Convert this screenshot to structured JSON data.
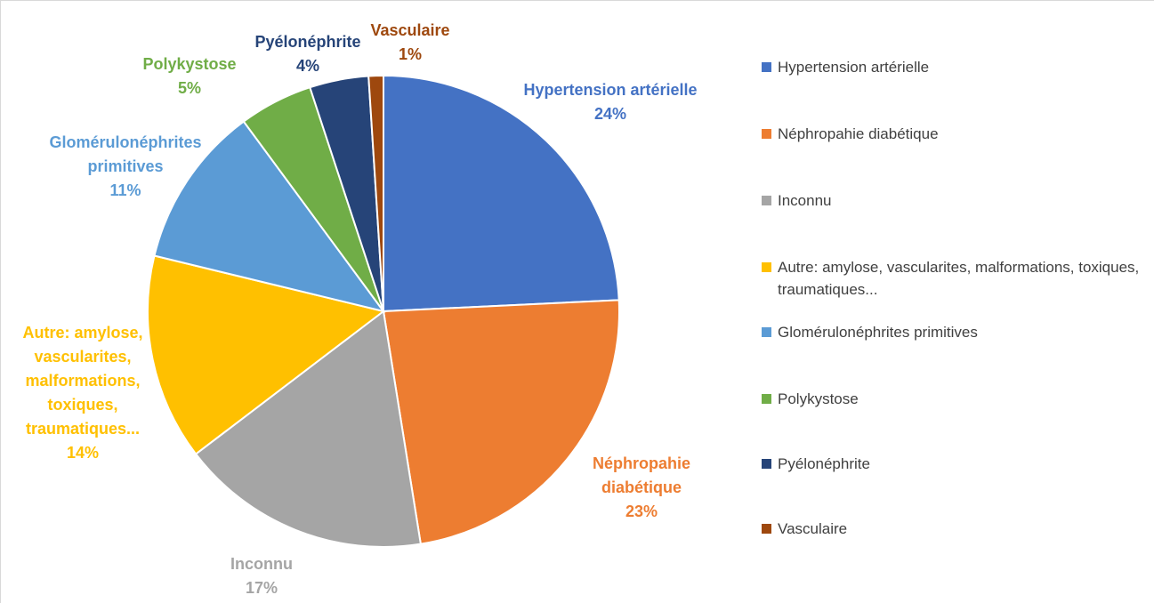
{
  "chart_data": {
    "type": "pie",
    "categories": [
      "Hypertension artérielle",
      "Néphropahie diabétique",
      "Inconnu",
      "Autre: amylose, vascularites, malformations, toxiques, traumatiques...",
      "Glomérulonéphrites primitives",
      "Polykystose",
      "Pyélonéphrite",
      "Vasculaire"
    ],
    "values": [
      24,
      23,
      17,
      14,
      11,
      5,
      4,
      1
    ],
    "value_labels": [
      "24%",
      "23%",
      "17%",
      "14%",
      "11%",
      "5%",
      "4%",
      "1%"
    ],
    "colors": [
      "#4472c4",
      "#ed7d31",
      "#a5a5a5",
      "#ffc000",
      "#5b9bd5",
      "#70ad47",
      "#264478",
      "#9e480e"
    ],
    "legend": "right"
  }
}
